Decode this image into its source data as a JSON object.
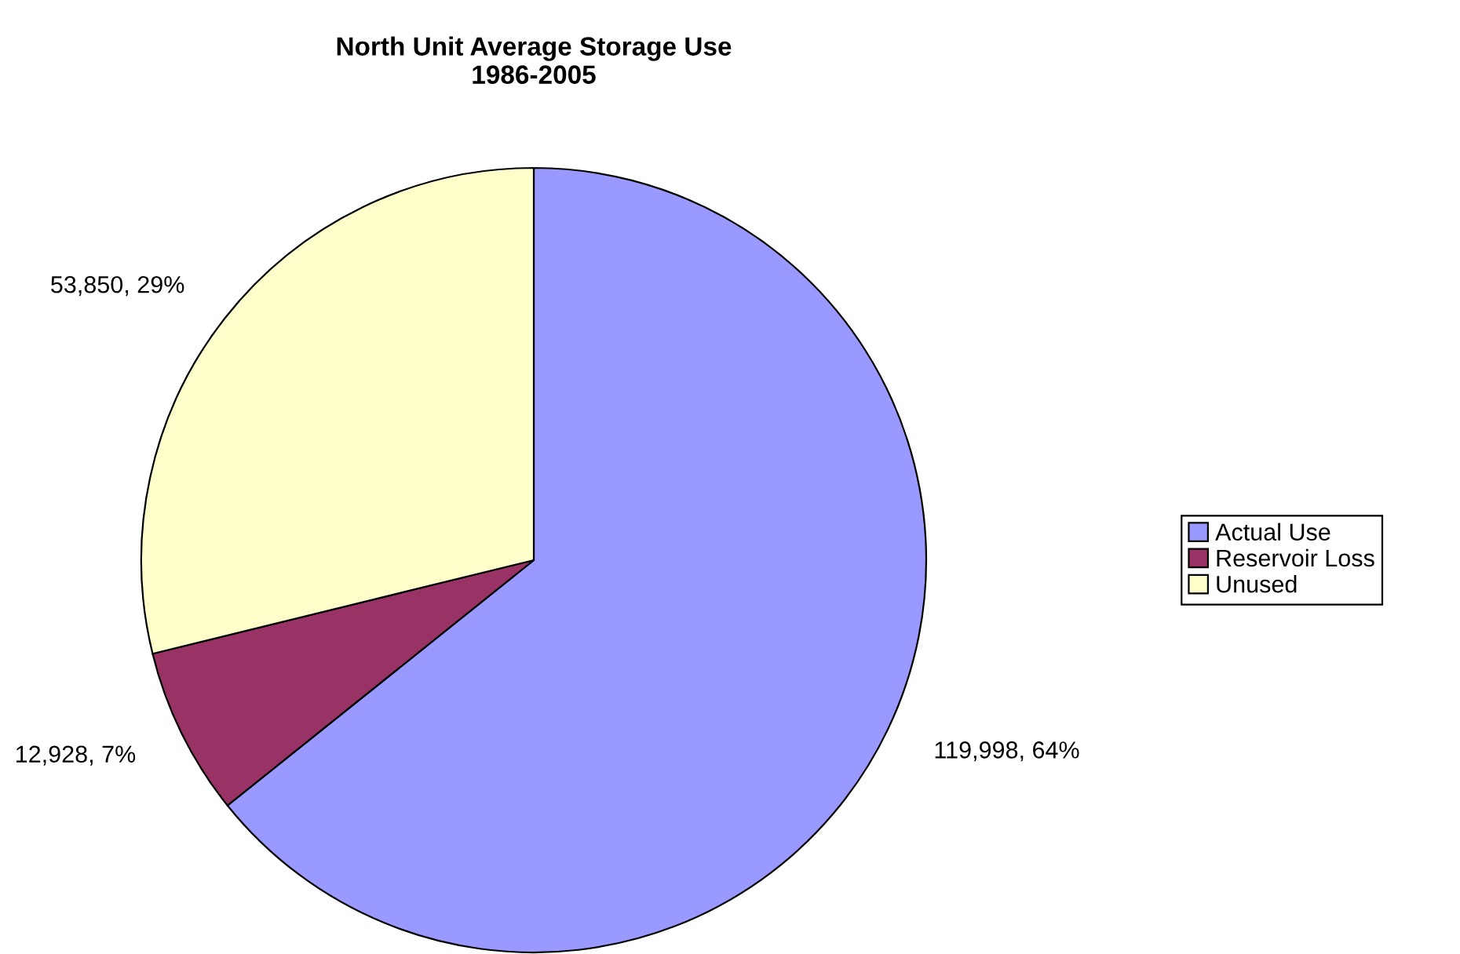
{
  "chart_data": {
    "type": "pie",
    "title": "North Unit Average Storage Use\n1986-2005",
    "categories": [
      "Actual Use",
      "Reservoir Loss",
      "Unused"
    ],
    "values": [
      119998,
      12928,
      53850
    ],
    "colors": [
      "#9999ff",
      "#993366",
      "#ffffcc"
    ],
    "value_labels": [
      "119,998, 64%",
      "12,928, 7%",
      "53,850, 29%"
    ],
    "legend": "right"
  }
}
